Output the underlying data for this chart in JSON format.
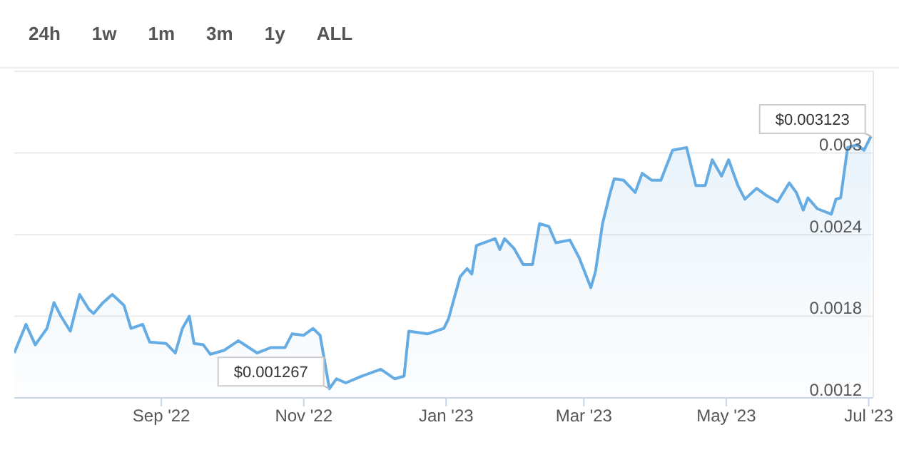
{
  "chart_data": {
    "type": "area",
    "annotations": [
      "24h",
      "1w",
      "1m",
      "3m",
      "1y",
      "ALL",
      {
        "text": "$0.001267",
        "x": "2022-11-12",
        "y": 0.001267
      },
      {
        "text": "$0.003123",
        "x": "2023-07-02",
        "y": 0.003123
      }
    ],
    "x": [
      "2022-06-30",
      "2022-07-05",
      "2022-07-09",
      "2022-07-14",
      "2022-07-17",
      "2022-07-20",
      "2022-07-24",
      "2022-07-28",
      "2022-08-01",
      "2022-08-03",
      "2022-08-07",
      "2022-08-11",
      "2022-08-16",
      "2022-08-19",
      "2022-08-24",
      "2022-08-27",
      "2022-09-03",
      "2022-09-07",
      "2022-09-10",
      "2022-09-13",
      "2022-09-15",
      "2022-09-19",
      "2022-09-22",
      "2022-09-28",
      "2022-10-04",
      "2022-10-12",
      "2022-10-18",
      "2022-10-24",
      "2022-10-27",
      "2022-11-01",
      "2022-11-05",
      "2022-11-08",
      "2022-11-12",
      "2022-11-15",
      "2022-11-19",
      "2022-11-26",
      "2022-12-04",
      "2022-12-10",
      "2022-12-14",
      "2022-12-16",
      "2022-12-24",
      "2022-12-31",
      "2023-01-02",
      "2023-01-07",
      "2023-01-10",
      "2023-01-12",
      "2023-01-14",
      "2023-01-22",
      "2023-01-24",
      "2023-01-26",
      "2023-01-30",
      "2023-02-03",
      "2023-02-07",
      "2023-02-10",
      "2023-02-14",
      "2023-02-17",
      "2023-02-23",
      "2023-02-27",
      "2023-03-04",
      "2023-03-06",
      "2023-03-09",
      "2023-03-12",
      "2023-03-14",
      "2023-03-18",
      "2023-03-23",
      "2023-03-26",
      "2023-03-30",
      "2023-04-03",
      "2023-04-08",
      "2023-04-14",
      "2023-04-18",
      "2023-04-22",
      "2023-04-25",
      "2023-04-29",
      "2023-05-02",
      "2023-05-06",
      "2023-05-09",
      "2023-05-14",
      "2023-05-18",
      "2023-05-23",
      "2023-05-28",
      "2023-05-31",
      "2023-06-03",
      "2023-06-05",
      "2023-06-09",
      "2023-06-15",
      "2023-06-17",
      "2023-06-19",
      "2023-06-22",
      "2023-06-26",
      "2023-06-29",
      "2023-07-02"
    ],
    "series": [
      {
        "color": "#64ace3",
        "values": [
          0.00153,
          0.00174,
          0.00159,
          0.00171,
          0.0019,
          0.0018,
          0.00169,
          0.00196,
          0.00185,
          0.00182,
          0.0019,
          0.00196,
          0.00188,
          0.00171,
          0.00174,
          0.00161,
          0.0016,
          0.00153,
          0.00171,
          0.0018,
          0.0016,
          0.00159,
          0.00152,
          0.00155,
          0.00162,
          0.00153,
          0.00157,
          0.00157,
          0.00167,
          0.00166,
          0.00171,
          0.00166,
          0.001267,
          0.00134,
          0.00131,
          0.00136,
          0.00141,
          0.00134,
          0.00136,
          0.00169,
          0.00167,
          0.00171,
          0.00178,
          0.00209,
          0.00215,
          0.00211,
          0.00232,
          0.00237,
          0.00229,
          0.00237,
          0.0023,
          0.00218,
          0.00218,
          0.00248,
          0.00246,
          0.00234,
          0.00236,
          0.00223,
          0.00201,
          0.00213,
          0.00248,
          0.00269,
          0.00281,
          0.0028,
          0.00271,
          0.00285,
          0.0028,
          0.0028,
          0.00302,
          0.00304,
          0.00276,
          0.00276,
          0.00295,
          0.00283,
          0.00295,
          0.00276,
          0.00266,
          0.00274,
          0.00269,
          0.00264,
          0.00278,
          0.00271,
          0.00258,
          0.00267,
          0.00259,
          0.00255,
          0.00266,
          0.00267,
          0.00304,
          0.00306,
          0.00302,
          0.003123
        ]
      }
    ],
    "xlim": [
      "2022-06-30",
      "2023-07-03"
    ],
    "xticks": [
      {
        "value": "2022-09-01",
        "label": "Sep '22"
      },
      {
        "value": "2022-11-01",
        "label": "Nov '22"
      },
      {
        "value": "2023-01-01",
        "label": "Jan '23"
      },
      {
        "value": "2023-03-01",
        "label": "Mar '23"
      },
      {
        "value": "2023-05-01",
        "label": "May '23"
      },
      {
        "value": "2023-07-01",
        "label": "Jul '23"
      }
    ],
    "ylim": [
      0.0012,
      0.0036
    ],
    "yticks": [
      0.0012,
      0.0018,
      0.0024,
      0.003
    ],
    "grid": "y",
    "legend": false,
    "marker": "none",
    "line_style": "solid"
  }
}
